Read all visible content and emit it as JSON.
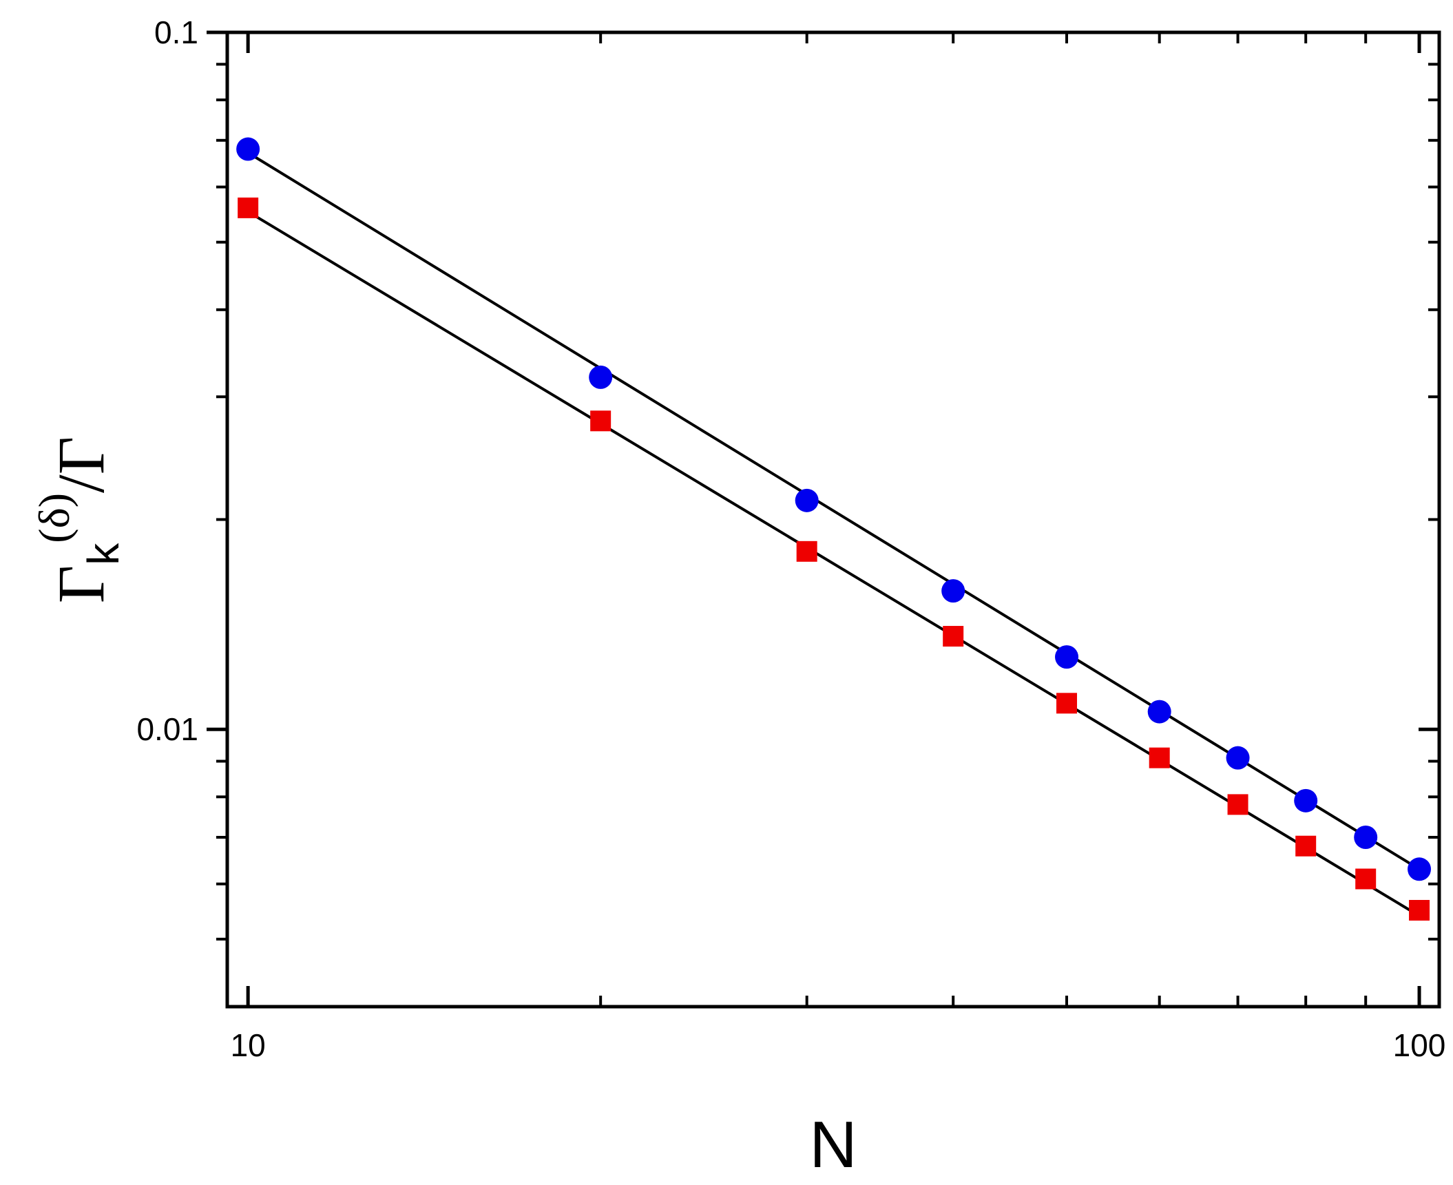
{
  "chart_data": {
    "type": "scatter",
    "xscale": "log",
    "yscale": "log",
    "xlim": [
      9.6,
      104
    ],
    "ylim": [
      0.004,
      0.1
    ],
    "x_ticks": [
      {
        "value": 10,
        "label": "10"
      },
      {
        "value": 100,
        "label": "100"
      }
    ],
    "y_ticks": [
      {
        "value": 0.1,
        "label": "0.1"
      },
      {
        "value": 0.01,
        "label": "0.01"
      }
    ],
    "xlabel": "N",
    "ylabel": {
      "main": "Γ",
      "sub": "k",
      "sup": "(δ)",
      "tail": "/Γ"
    },
    "grid": false,
    "series": [
      {
        "marker": "circle",
        "color": "#0000ee",
        "x": [
          10,
          20,
          30,
          40,
          50,
          60,
          70,
          80,
          90,
          100
        ],
        "y": [
          0.068,
          0.032,
          0.0213,
          0.0158,
          0.0127,
          0.0106,
          0.0091,
          0.0079,
          0.007,
          0.0063
        ]
      },
      {
        "marker": "square",
        "color": "#ee0000",
        "x": [
          10,
          20,
          30,
          40,
          50,
          60,
          70,
          80,
          90,
          100
        ],
        "y": [
          0.056,
          0.0277,
          0.018,
          0.0136,
          0.0109,
          0.0091,
          0.0078,
          0.0068,
          0.0061,
          0.0055
        ]
      }
    ],
    "fit_lines": [
      {
        "color": "#000000",
        "x": [
          10,
          100
        ],
        "y": [
          0.0672,
          0.0063
        ]
      },
      {
        "color": "#000000",
        "x": [
          10,
          100
        ],
        "y": [
          0.0553,
          0.0054
        ]
      }
    ]
  }
}
